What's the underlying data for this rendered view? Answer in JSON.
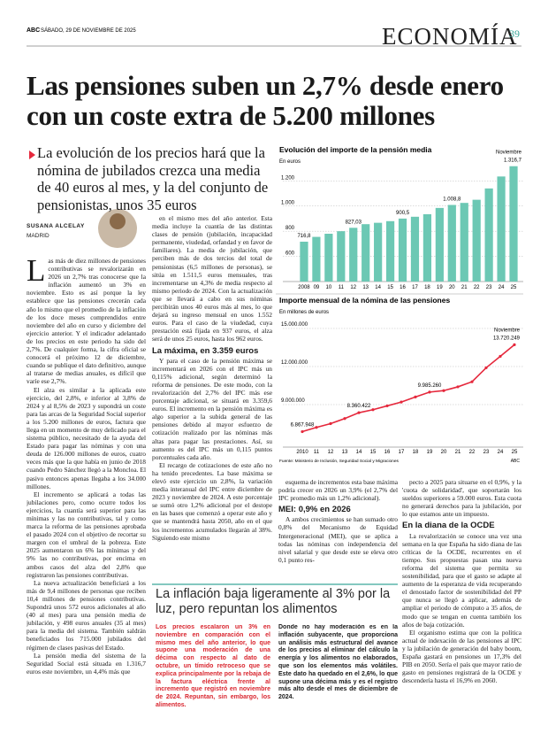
{
  "header": {
    "brand": "ABC",
    "date": "SÁBADO, 29 DE NOVIEMBRE DE 2025",
    "section": "ECONOMÍA",
    "page": "39"
  },
  "headline": "Las pensiones suben un 2,7% desde enero con un coste extra de 5.200 millones",
  "subheadline": "La evolución de los precios hará que la nómina de jubilados crezca una media de 40 euros al mes, y la del conjunto de pensionistas, unos 35 euros",
  "byline": {
    "author": "SUSANA ALCELAY",
    "place": "MADRID"
  },
  "columns": [
    [
      {
        "text": "Las más de diez millones de pensiones contributivas se revalorizarán en 2026 un 2,7% tras conocerse que la inflación aumentó un 3% en noviembre. Esto es así porque la ley establece que las pensiones crecerán cada año lo mismo que el promedio de la inflación de los doce meses comprendidos entre noviembre del año en curso y diciembre del ejercicio anterior. Y el indicador adelantado de los precios en este periodo ha sido del 2,7%. De cualquier forma, la cifra oficial se conocerá el próximo 12 de diciembre, cuando se publique el dato definitivo, aunque al tratarse de medias anuales, es difícil que varíe ese 2,7%."
      },
      {
        "text": "El alza es similar a la aplicada este ejercicio, del 2,8%, e inferior al 3,8% de 2024 y al 8,5% de 2023 y supondrá un coste para las arcas de la Seguridad Social superior a los 5.200 millones de euros, factura que llega en un momento de muy delicado para el sistema público, necesitado de la ayuda del Estado para pagar las nóminas y con una deuda de 126.000 millones de euros, cuatro veces más que la que había en junio de 2018 cuando Pedro Sánchez llegó a la Moncloa. El pasivo entonces apenas llegaba a los 34.000 millones."
      },
      {
        "text": "El incremento se aplicará a todas las jubilaciones pero, como ocurre todos los ejercicios, la cuantía será superior para las mínimas y las no contributivas, tal y como marca la reforma de las pensiones aprobada el pasado 2024 con el objetivo de recortar su margen con el umbral de la pobreza. Este 2025 aumentaron un 6% las mínimas y del 9% las no contributivas, por encima en ambos casos del alza del 2,8% que registraron las pensiones contributivas."
      },
      {
        "text": "La nueva actualización beneficiará a los más de 9,4 millones de personas que reciben 10,4 millones de pensiones contributivas. Supondrá unos 572 euros adicionales al año (40 al mes) para una pensión media de jubilación, y 498 euros anuales (35 al mes) para la media del sistema. También saldrán beneficiados los 715.000 jubilados del régimen de clases pasivas del Estado."
      },
      {
        "text": "La pensión media del sistema de la Seguridad Social está situada en 1.316,7 euros este noviembre, un 4,4% más que"
      }
    ],
    [
      {
        "text": "en el mismo mes del año anterior. Esta media incluye la cuantía de las distintas clases de pensión (jubilación, incapacidad permanente, viudedad, orfandad y en favor de familiares). La media de jubilación, que perciben más de dos tercios del total de pensionistas (6,5 millones de personas), se sitúa en 1.511,5 euros mensuales, tras incrementarse un 4,3% de media respecto al mismo periodo de 2024. Con la actualización que se llevará a cabo en sus nóminas percibirán unos 40 euros más al mes, lo que dejará su ingreso mensual en unos 1.552 euros. Para el caso de la viudedad, cuya prestación está fijada en 937 euros, el alza será de unos 25 euros, hasta los 962 euros."
      },
      {
        "subhead": "La máxima, en 3.359 euros"
      },
      {
        "text": "Y para el caso de la pensión máxima se incrementará en 2026 con el IPC más un 0,115% adicional, según determinó la reforma de pensiones. De este modo, con la revalorización del 2,7% del IPC más ese porcentaje adicional, se situará en 3.359,6 euros. El incremento en la pensión máxima es algo superior a la subida general de las pensiones debido al mayor esfuerzo de cotización realizado por las nóminas más altas para pagar las prestaciones. Así, su aumento es del IPC más un 0,115 puntos porcentuales cada año."
      },
      {
        "text": "El recargo de cotizaciones de este año no ha tenido precedentes. La base máxima se elevó este ejercicio un 2,8%, la variación media interanual del IPC entre diciembre de 2023 y noviembre de 2024. A este porcentaje se sumó otro 1,2% adicional por el destope en las bases que comenzó a operar este año y que se mantendrá hasta 2050, año en el que los incrementos acumulados llegarán al 38%. Siguiendo este mismo"
      }
    ],
    [
      {
        "text": "esquema de incrementos esta base máxima podría crecer en 2026 un 3,9% (el 2,7% del IPC promedio más un 1,2% adicional)."
      },
      {
        "subhead": "MEI: 0,9% en 2026"
      },
      {
        "text": "A ambos crecimientos se han sumado otro 0,8% del Mecanismo de Equidad Intergeneracional (MEI), que se aplica a todas las nóminas con independencia del nivel salarial y que desde este se eleva otro 0,1 punto res-"
      }
    ],
    [
      {
        "text": "pecto a 2025 para situarse en el 0,9%, y la 'cuota de solidaridad', que soportarán los sueldos superiores a 59.000 euros. Esta cuota no generará derechos para la jubilación, por lo que estamos ante un impuesto."
      },
      {
        "subhead": "En la diana de la OCDE"
      },
      {
        "text": "La revalorización se conoce una vez una semana en la que España ha sido diana de las críticas de la OCDE, recurrentes en el tiempo. Sus propuestas pasan una nueva reforma del sistema que permita su sostenibilidad, para que el gasto se adapte al aumento de la esperanza de vida recuperando el denostado factor de sostenibilidad del PP que nunca se llegó a aplicar, además de ampliar el periodo de cómputo a 35 años, de modo que se tengan en cuenta también los años de baja cotización."
      },
      {
        "text": "El organismo estima que con la política actual de indexación de las pensiones al IPC y la jubilación de generación del baby boom, España gastará en pensiones un 17,3% del PIB en 2050. Sería el país que mayor ratio de gasto en pensiones registrará de la OCDE y descendería hasta el 16,9% en 2060."
      }
    ]
  ],
  "box": {
    "title": "La inflación baja ligeramente al 3% por la luz, pero repuntan los alimentos",
    "columns": [
      "Los precios escalaron un 3% en noviembre en comparación con el mismo mes del año anterior, lo que supone una moderación de una décima con respecto al dato de octubre, un tímido retroceso que se explica principalmente por la rebaja de la factura eléctrica frente al incremento que registró en noviembre de 2024. Repuntan, sin embargo, los alimentos.",
      "Donde no hay moderación es en la inflación subyacente, que proporciona un análisis más estructural del avance de los precios al eliminar del cálculo la energía y los alimentos no elaborados, que son los elementos más volátiles. Este dato ha quedado en el 2,6%, lo que supone una décima más y es el registro más alto desde el mes de diciembre de 2024."
    ]
  },
  "chart_data": [
    {
      "type": "bar",
      "title": "Evolución del importe de la pensión media",
      "subtitle": "En euros",
      "annotation": "Noviembre",
      "color": "#6cc8b4",
      "categories": [
        "2008",
        "09",
        "10",
        "11",
        "12",
        "13",
        "14",
        "15",
        "16",
        "17",
        "18",
        "19",
        "20",
        "21",
        "22",
        "23",
        "24",
        "25"
      ],
      "values": [
        716.8,
        755,
        780,
        800,
        827.03,
        856,
        867,
        880,
        900.5,
        915,
        935,
        985,
        1008.8,
        1025,
        1050,
        1140,
        1235,
        1316.7
      ],
      "value_labels": [
        "716,8",
        null,
        null,
        null,
        "827,03",
        null,
        null,
        null,
        "900,5",
        null,
        null,
        null,
        "1.008,8",
        null,
        null,
        null,
        null,
        "1.316,7"
      ],
      "ylim": [
        400,
        1350
      ],
      "yticks": [
        {
          "value": 600,
          "label": "600"
        },
        {
          "value": 800,
          "label": "800"
        },
        {
          "value": 1000,
          "label": "1.000"
        },
        {
          "value": 1200,
          "label": "1.200"
        }
      ],
      "grid": true
    },
    {
      "type": "line",
      "title": "Importe mensual de la nómina de las pensiones",
      "subtitle": "En millones de euros",
      "annotation": "Noviembre",
      "color": "#e5283c",
      "source": "Fuente: Ministerio de Inclusión, Seguridad Social y Migraciones",
      "credit": "ABC",
      "categories": [
        "2010",
        "11",
        "12",
        "13",
        "14",
        "15",
        "16",
        "17",
        "18",
        "19",
        "20",
        "21",
        "22",
        "23",
        "24",
        "25"
      ],
      "values": [
        6867948,
        7200000,
        7500000,
        7900000,
        8360422,
        8600000,
        8900000,
        9200000,
        9600000,
        9985260,
        10100000,
        10400000,
        10800000,
        11900000,
        12800000,
        13720249
      ],
      "value_labels": [
        "6.867.948",
        null,
        null,
        null,
        "8.360.422",
        null,
        null,
        null,
        null,
        "9.985.260",
        null,
        null,
        null,
        null,
        null,
        "13.720.249"
      ],
      "ylim": [
        5650000,
        15000000
      ],
      "yticks": [
        {
          "value": 9000000,
          "label": "9.000.000"
        },
        {
          "value": 12000000,
          "label": "12.000.000"
        },
        {
          "value": 15000000,
          "label": "15.000.000"
        }
      ],
      "grid": true
    }
  ]
}
